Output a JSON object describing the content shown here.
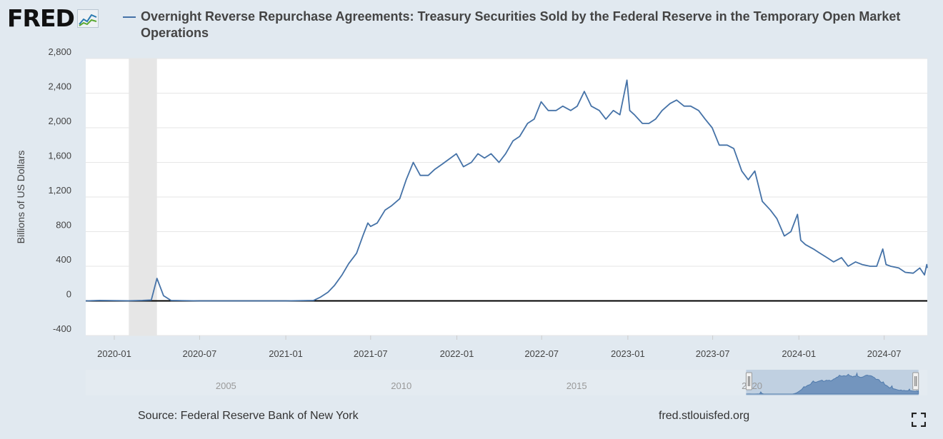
{
  "header": {
    "logo_text": "FRED",
    "title": "Overnight Reverse Repurchase Agreements: Treasury Securities Sold by the Federal Reserve in the Temporary Open Market Operations"
  },
  "footer": {
    "source": "Source: Federal Reserve Bank of New York",
    "url": "fred.stlouisfed.org"
  },
  "colors": {
    "line": "#4572a7",
    "recession": "#e6e6e6",
    "background": "#e1e9f0",
    "plot": "#ffffff"
  },
  "icons": {
    "logo": "fred-line-chart-icon",
    "fullscreen": "expand-icon"
  },
  "chart_data": {
    "type": "line",
    "title": "Overnight Reverse Repurchase Agreements: Treasury Securities Sold by the Federal Reserve in the Temporary Open Market Operations",
    "xlabel": "",
    "ylabel": "Billions of US Dollars",
    "ylim": [
      -400,
      2800
    ],
    "xlim": [
      "2019-11-01",
      "2024-10-01"
    ],
    "y_ticks": [
      "-400",
      "0",
      "400",
      "800",
      "1,200",
      "1,600",
      "2,000",
      "2,400",
      "2,800"
    ],
    "y_tick_values": [
      -400,
      0,
      400,
      800,
      1200,
      1600,
      2000,
      2400,
      2800
    ],
    "x_ticks": [
      "2020-01",
      "2020-07",
      "2021-01",
      "2021-07",
      "2022-01",
      "2022-07",
      "2023-01",
      "2023-07",
      "2024-01",
      "2024-07"
    ],
    "grid": true,
    "recession_shading": [
      {
        "start": "2020-02-01",
        "end": "2020-04-01"
      }
    ],
    "navigator": {
      "labels": [
        "2005",
        "2010",
        "2015",
        "2020"
      ],
      "label_years": [
        2005,
        2010,
        2015,
        2020
      ],
      "range_years": [
        2001,
        2025
      ],
      "selection": [
        "2019-11-01",
        "2024-10-01"
      ]
    },
    "series": [
      {
        "x": [
          "2019-11-01",
          "2019-12-01",
          "2020-01-01",
          "2020-02-01",
          "2020-03-01",
          "2020-03-20",
          "2020-04-01",
          "2020-04-15",
          "2020-05-01",
          "2020-07-01",
          "2020-10-01",
          "2021-01-01",
          "2021-03-01",
          "2021-03-15",
          "2021-04-01",
          "2021-04-15",
          "2021-05-01",
          "2021-05-15",
          "2021-06-01",
          "2021-06-15",
          "2021-06-25",
          "2021-07-01",
          "2021-07-15",
          "2021-08-01",
          "2021-08-15",
          "2021-09-01",
          "2021-09-15",
          "2021-09-30",
          "2021-10-15",
          "2021-11-01",
          "2021-11-15",
          "2021-12-01",
          "2021-12-31",
          "2022-01-15",
          "2022-02-01",
          "2022-02-15",
          "2022-03-01",
          "2022-03-15",
          "2022-04-01",
          "2022-04-15",
          "2022-05-01",
          "2022-05-15",
          "2022-06-01",
          "2022-06-15",
          "2022-06-30",
          "2022-07-15",
          "2022-08-01",
          "2022-08-15",
          "2022-09-01",
          "2022-09-15",
          "2022-09-30",
          "2022-10-15",
          "2022-11-01",
          "2022-11-15",
          "2022-12-01",
          "2022-12-15",
          "2022-12-30",
          "2023-01-05",
          "2023-01-15",
          "2023-02-01",
          "2023-02-15",
          "2023-03-01",
          "2023-03-15",
          "2023-04-01",
          "2023-04-15",
          "2023-05-01",
          "2023-05-15",
          "2023-06-01",
          "2023-06-15",
          "2023-06-30",
          "2023-07-15",
          "2023-08-01",
          "2023-08-15",
          "2023-09-01",
          "2023-09-15",
          "2023-09-29",
          "2023-10-15",
          "2023-11-01",
          "2023-11-15",
          "2023-12-01",
          "2023-12-15",
          "2023-12-29",
          "2024-01-05",
          "2024-01-15",
          "2024-02-01",
          "2024-02-15",
          "2024-03-01",
          "2024-03-15",
          "2024-04-01",
          "2024-04-15",
          "2024-05-01",
          "2024-05-15",
          "2024-06-01",
          "2024-06-15",
          "2024-06-28",
          "2024-07-05",
          "2024-07-15",
          "2024-08-01",
          "2024-08-15",
          "2024-09-01",
          "2024-09-15",
          "2024-09-25",
          "2024-09-30",
          "2024-10-01"
        ],
        "y": [
          0,
          5,
          3,
          1,
          5,
          10,
          260,
          60,
          5,
          0,
          0,
          0,
          5,
          40,
          100,
          180,
          300,
          430,
          550,
          760,
          900,
          860,
          900,
          1050,
          1100,
          1180,
          1400,
          1600,
          1450,
          1450,
          1520,
          1580,
          1700,
          1550,
          1600,
          1700,
          1650,
          1700,
          1600,
          1700,
          1850,
          1900,
          2050,
          2100,
          2300,
          2200,
          2200,
          2250,
          2200,
          2250,
          2420,
          2250,
          2200,
          2100,
          2200,
          2150,
          2550,
          2200,
          2150,
          2050,
          2050,
          2100,
          2200,
          2280,
          2320,
          2250,
          2250,
          2200,
          2100,
          2000,
          1800,
          1800,
          1760,
          1500,
          1400,
          1500,
          1150,
          1050,
          950,
          750,
          800,
          1000,
          700,
          650,
          600,
          550,
          500,
          450,
          500,
          400,
          450,
          420,
          400,
          400,
          600,
          420,
          400,
          380,
          330,
          320,
          380,
          300,
          420,
          380
        ]
      }
    ]
  }
}
